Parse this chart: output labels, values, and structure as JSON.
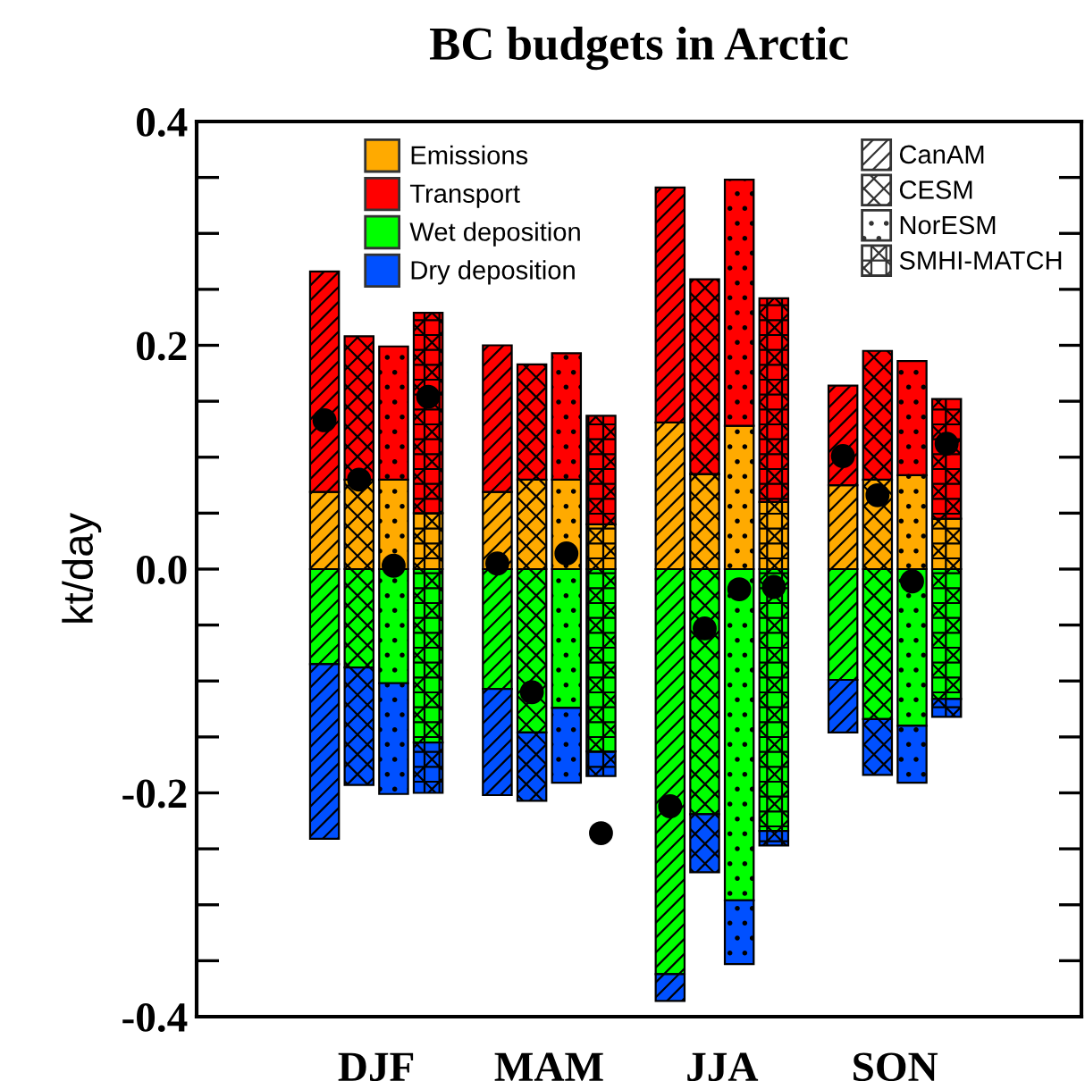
{
  "chart_data": {
    "type": "bar",
    "title": "BC budgets in Arctic",
    "ylabel": "kt/day",
    "stacked": true,
    "annotations": [
      "CanAM",
      "CESM",
      "NorESM",
      "SMHI-MATCH"
    ],
    "categories": [
      null,
      null,
      null,
      "DJF",
      null,
      null,
      null,
      null,
      null,
      null,
      null,
      null,
      null,
      "MAM",
      null,
      null,
      null,
      null,
      null,
      null,
      null,
      null,
      null,
      "JJA",
      null,
      null,
      null,
      null,
      null,
      null,
      null,
      null,
      null,
      "SON",
      null,
      null,
      null
    ],
    "series": [
      {
        "name": "Emissions",
        "color": "#ffaa00",
        "values": [
          0.069,
          null,
          0.08,
          null,
          0.08,
          null,
          0.05,
          null,
          null,
          null,
          0.069,
          null,
          0.08,
          null,
          0.08,
          null,
          0.04,
          null,
          null,
          null,
          0.131,
          null,
          0.085,
          null,
          0.128,
          null,
          0.06,
          null,
          null,
          null,
          0.075,
          null,
          0.08,
          null,
          0.084,
          null,
          0.045
        ]
      },
      {
        "name": "Transport",
        "color": "#ff0000",
        "values": [
          0.197,
          null,
          0.128,
          null,
          0.119,
          null,
          0.179,
          null,
          null,
          null,
          0.131,
          null,
          0.103,
          null,
          0.113,
          null,
          0.097,
          null,
          null,
          null,
          0.21,
          null,
          0.174,
          null,
          0.22,
          null,
          0.182,
          null,
          null,
          null,
          0.089,
          null,
          0.115,
          null,
          0.102,
          null,
          0.107
        ]
      },
      {
        "name": "Wet deposition",
        "color": "#00ff00",
        "values": [
          -0.085,
          null,
          -0.088,
          null,
          -0.102,
          null,
          -0.155,
          null,
          null,
          null,
          -0.107,
          null,
          -0.146,
          null,
          -0.124,
          null,
          -0.163,
          null,
          null,
          null,
          -0.362,
          null,
          -0.219,
          null,
          -0.296,
          null,
          -0.234,
          null,
          null,
          null,
          -0.099,
          null,
          -0.134,
          null,
          -0.14,
          null,
          -0.116
        ]
      },
      {
        "name": "Dry deposition",
        "color": "#0050ff",
        "values": [
          -0.156,
          null,
          -0.105,
          null,
          -0.099,
          null,
          -0.045,
          null,
          null,
          null,
          -0.095,
          null,
          -0.061,
          null,
          -0.067,
          null,
          -0.022,
          null,
          null,
          null,
          -0.024,
          null,
          -0.052,
          null,
          -0.057,
          null,
          -0.013,
          null,
          null,
          null,
          -0.047,
          null,
          -0.05,
          null,
          -0.051,
          null,
          -0.016
        ]
      },
      {
        "type": "scatter",
        "color": "#000000",
        "values": [
          0.133,
          null,
          0.08,
          null,
          0.003,
          null,
          0.154,
          null,
          null,
          null,
          0.005,
          null,
          -0.11,
          null,
          0.014,
          null,
          -0.236,
          null,
          null,
          null,
          -0.212,
          null,
          -0.053,
          null,
          -0.018,
          null,
          -0.016,
          null,
          null,
          null,
          0.101,
          null,
          0.066,
          null,
          -0.011,
          null,
          0.112
        ]
      }
    ],
    "ylim": [
      -0.4,
      0.4
    ],
    "yticks": [
      -0.4,
      -0.2,
      {
        "value": 0,
        "label": "0.0"
      },
      0.2,
      0.4
    ],
    "grid": false,
    "legend": "top",
    "marker": "circle"
  }
}
